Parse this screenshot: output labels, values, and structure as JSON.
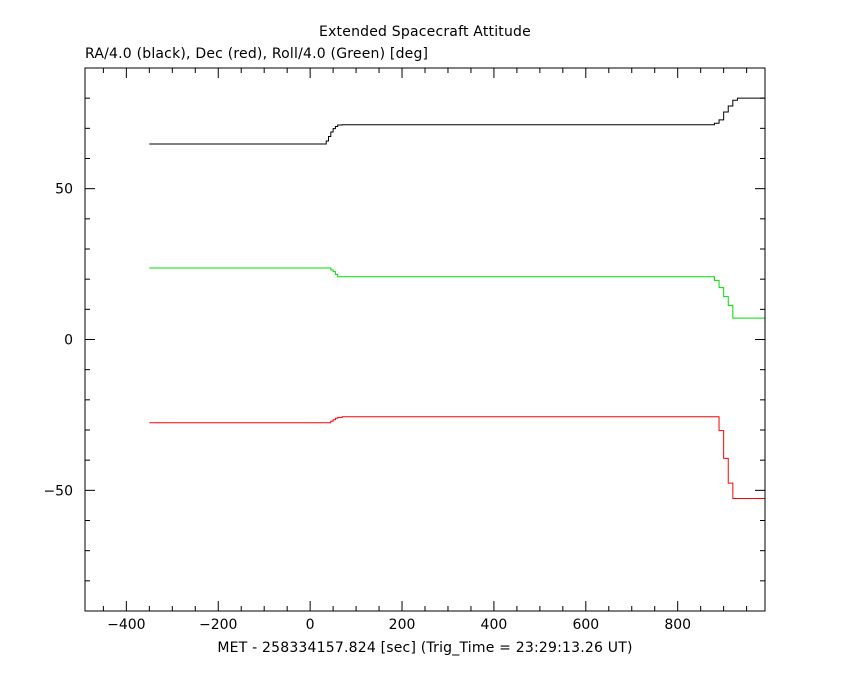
{
  "chart_data": {
    "type": "line",
    "title": "Extended Spacecraft Attitude",
    "subtitle": "RA/4.0 (black), Dec (red), Roll/4.0 (Green) [deg]",
    "xlabel": "MET - 258334157.824 [sec] (Trig_Time = 23:29:13.26 UT)",
    "ylabel": "",
    "xlim": [
      -490,
      990
    ],
    "ylim": [
      -90,
      90
    ],
    "x_ticks": [
      -400,
      -200,
      0,
      200,
      400,
      600,
      800
    ],
    "x_tick_labels": [
      "−400",
      "−200",
      "0",
      "200",
      "400",
      "600",
      "800"
    ],
    "y_ticks": [
      -50,
      0,
      50
    ],
    "y_tick_labels": [
      "−50",
      "0",
      "50"
    ],
    "grid": false,
    "series": [
      {
        "color": "#000000",
        "step": true,
        "x": [
          -350,
          30,
          35,
          40,
          45,
          50,
          55,
          60,
          70,
          870,
          880,
          890,
          900,
          910,
          920,
          930,
          990
        ],
        "y": [
          64.8,
          64.8,
          65.8,
          67.3,
          68.8,
          69.9,
          70.6,
          71.1,
          71.2,
          71.2,
          71.7,
          72.8,
          75.4,
          77.4,
          79.3,
          80.0,
          80.0
        ]
      },
      {
        "color": "#00dd00",
        "step": true,
        "x": [
          -350,
          40,
          45,
          50,
          55,
          60,
          870,
          880,
          890,
          900,
          910,
          920,
          990
        ],
        "y": [
          23.7,
          23.7,
          23.1,
          22.5,
          21.6,
          20.8,
          20.8,
          19.6,
          17.2,
          14.2,
          11.3,
          7.1,
          7.1
        ]
      },
      {
        "color": "#ff0000",
        "step": true,
        "x": [
          -350,
          40,
          45,
          50,
          55,
          60,
          70,
          880,
          890,
          900,
          910,
          920,
          990
        ],
        "y": [
          -27.6,
          -27.6,
          -27.1,
          -26.6,
          -26.1,
          -25.8,
          -25.6,
          -25.6,
          -30.2,
          -39.4,
          -47.6,
          -52.7,
          -52.7
        ]
      }
    ]
  }
}
